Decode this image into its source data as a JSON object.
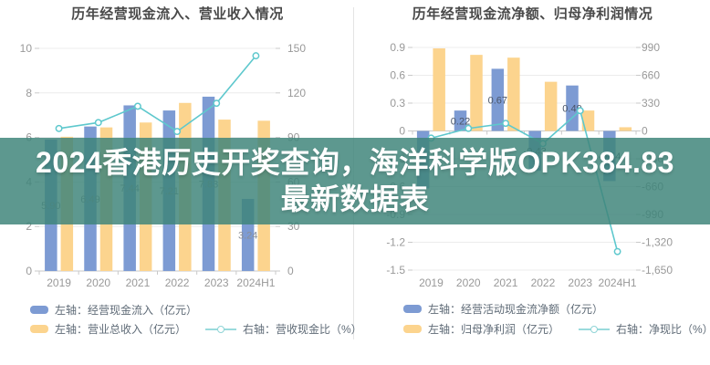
{
  "banner": {
    "text": "2024香港历史开奖查询，海洋科学版OPK384.83最新数据表"
  },
  "colors": {
    "bar_blue": "#7d9bd3",
    "bar_orange": "#fcd48e",
    "line_teal": "#5ec8cd",
    "banner_teal_bg": "#3e847a",
    "banner_text": "#ffffff",
    "title_text": "#4a4a4a",
    "axis_text": "#999999",
    "grid": "#ececec"
  },
  "chart_data": [
    {
      "type": "bar",
      "title": "历年经营现金流入、营业收入情况",
      "categories": [
        "2019",
        "2020",
        "2021",
        "2022",
        "2023",
        "2024H1"
      ],
      "series": [
        {
          "name": "左轴：经营现金流入（亿元）",
          "kind": "bar",
          "axis": "left",
          "color": "#7d9bd3",
          "values": [
            5.9,
            6.49,
            7.44,
            7.21,
            7.83,
            3.24
          ],
          "labels": [
            "5.90",
            "6.49",
            "7.44",
            "7.21",
            "7.83",
            "3.24"
          ],
          "label_color": "#8a8f98"
        },
        {
          "name": "左轴：营业总收入（亿元）",
          "kind": "bar",
          "axis": "left",
          "color": "#fcd48e",
          "values": [
            6.03,
            6.45,
            6.67,
            7.55,
            6.8,
            6.75
          ]
        },
        {
          "name": "右轴：营收现金比（%）",
          "kind": "line",
          "axis": "right",
          "color": "#5ec8cd",
          "values": [
            96,
            100,
            111,
            94,
            113,
            145
          ]
        }
      ],
      "left_axis": {
        "min": 0,
        "max": 10,
        "tick_values": [
          10,
          8,
          6,
          4,
          2,
          0
        ],
        "tick_labels": [
          "10",
          "8",
          "6",
          "4",
          "2",
          "0"
        ]
      },
      "right_axis": {
        "min": 0,
        "max": 150,
        "tick_values": [
          150,
          120,
          90,
          60,
          30,
          0
        ],
        "tick_labels": [
          "150",
          "120",
          "90",
          "60",
          "30",
          "0"
        ]
      },
      "legend_position": "bottom-left",
      "grid": true
    },
    {
      "type": "bar",
      "title": "历年经营现金流净额、归母净利润情况",
      "categories": [
        "2019",
        "2020",
        "2021",
        "2022",
        "2023",
        "2024H1"
      ],
      "series": [
        {
          "name": "左轴：经营活动现金流净额（亿元）",
          "kind": "bar",
          "axis": "left",
          "color": "#7d9bd3",
          "values": [
            -0.62,
            0.22,
            0.67,
            -0.43,
            0.49,
            -0.54
          ],
          "labels": [
            "",
            "0.22",
            "0.67",
            "-0.43",
            "0.49",
            "-0.54"
          ],
          "label_color": "#4a5568"
        },
        {
          "name": "左轴：归母净利润（亿元）",
          "kind": "bar",
          "axis": "left",
          "color": "#fcd48e",
          "values": [
            0.89,
            0.82,
            0.79,
            0.53,
            0.22,
            0.04
          ]
        },
        {
          "name": "右轴：净现比（%）",
          "kind": "line",
          "axis": "right",
          "color": "#5ec8cd",
          "values": [
            -85,
            30,
            90,
            -150,
            240,
            -1430
          ]
        }
      ],
      "left_axis": {
        "min": -1.5,
        "max": 0.9,
        "tick_values": [
          0.9,
          0.6,
          0.3,
          0,
          -0.3,
          -0.6,
          -0.9,
          -1.2,
          -1.5
        ],
        "tick_labels": [
          "0.9",
          "0.6",
          "0.3",
          "0",
          "-0.3",
          "-0.6",
          "-0.9",
          "-1.2",
          "-1.5"
        ]
      },
      "right_axis": {
        "min": -1650,
        "max": 990,
        "tick_values": [
          990,
          660,
          330,
          0,
          -330,
          -660,
          -990,
          -1320,
          -1650
        ],
        "tick_labels": [
          "990",
          "660",
          "330",
          "0",
          "-330",
          "-660",
          "-990",
          "-1,320",
          "-1,650"
        ]
      },
      "legend_position": "bottom-left",
      "grid": true
    }
  ]
}
